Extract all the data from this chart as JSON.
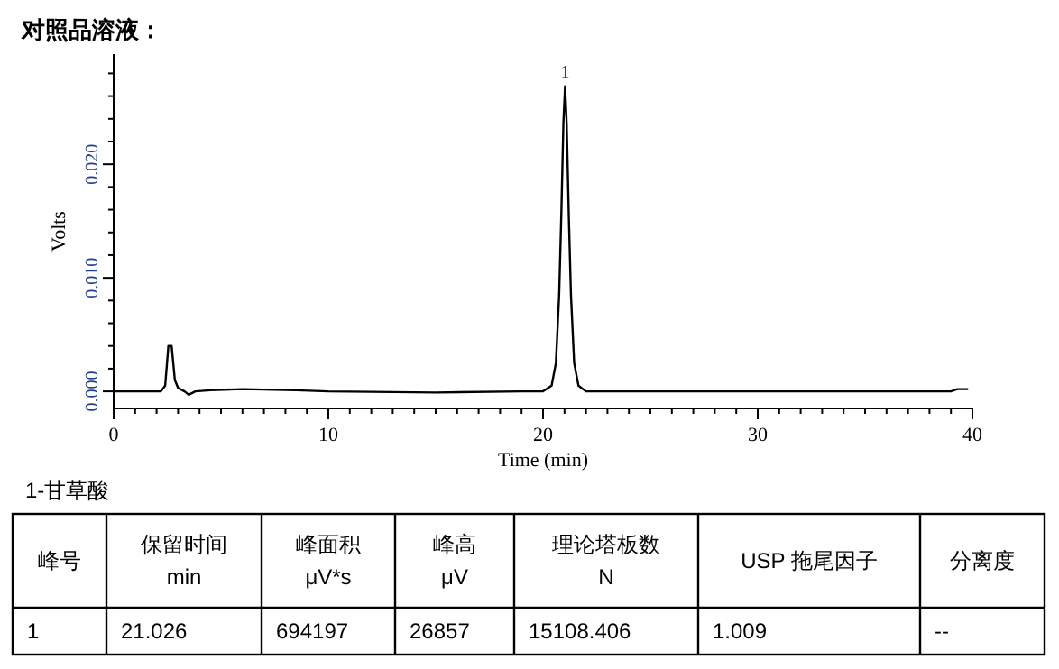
{
  "chart_data": [
    {
      "type": "line",
      "title": "对照品溶液：",
      "xlabel": "Time (min)",
      "ylabel": "Volts",
      "series": [
        {
          "color": "#000000",
          "x": [
            0,
            2.2,
            2.4,
            2.55,
            2.7,
            2.85,
            3.0,
            3.3,
            3.5,
            3.8,
            4.5,
            6,
            8.5,
            10,
            15,
            19,
            20,
            20.4,
            20.6,
            20.75,
            20.85,
            20.95,
            21.026,
            21.1,
            21.2,
            21.3,
            21.45,
            21.65,
            22,
            30,
            39,
            39.3,
            39.8
          ],
          "values": [
            0,
            0,
            0.0005,
            0.004,
            0.004,
            0.001,
            0.0003,
            0,
            -0.0003,
            0,
            0.0001,
            0.0002,
            0.0001,
            0,
            -0.0001,
            0,
            0,
            0.0005,
            0.0025,
            0.0085,
            0.0155,
            0.0237,
            0.026857,
            0.0237,
            0.0155,
            0.0085,
            0.0025,
            0.0005,
            0,
            0,
            0,
            0.0002,
            0.0002
          ]
        }
      ],
      "xlim": [
        0,
        40
      ],
      "ylim": [
        -0.0015,
        0.0297
      ],
      "xticks": [
        0,
        {
          "value": 1,
          "label": null
        },
        {
          "value": 2,
          "label": null
        },
        {
          "value": 3,
          "label": null
        },
        {
          "value": 4,
          "label": null
        },
        {
          "value": 5,
          "label": null
        },
        {
          "value": 6,
          "label": null
        },
        {
          "value": 7,
          "label": null
        },
        {
          "value": 8,
          "label": null
        },
        {
          "value": 9,
          "label": null
        },
        10,
        {
          "value": 11,
          "label": null
        },
        {
          "value": 12,
          "label": null
        },
        {
          "value": 13,
          "label": null
        },
        {
          "value": 14,
          "label": null
        },
        {
          "value": 15,
          "label": null
        },
        {
          "value": 16,
          "label": null
        },
        {
          "value": 17,
          "label": null
        },
        {
          "value": 18,
          "label": null
        },
        {
          "value": 19,
          "label": null
        },
        20,
        {
          "value": 21,
          "label": null
        },
        {
          "value": 22,
          "label": null
        },
        {
          "value": 23,
          "label": null
        },
        {
          "value": 24,
          "label": null
        },
        {
          "value": 25,
          "label": null
        },
        {
          "value": 26,
          "label": null
        },
        {
          "value": 27,
          "label": null
        },
        {
          "value": 28,
          "label": null
        },
        {
          "value": 29,
          "label": null
        },
        30,
        {
          "value": 31,
          "label": null
        },
        {
          "value": 32,
          "label": null
        },
        {
          "value": 33,
          "label": null
        },
        {
          "value": 34,
          "label": null
        },
        {
          "value": 35,
          "label": null
        },
        {
          "value": 36,
          "label": null
        },
        {
          "value": 37,
          "label": null
        },
        {
          "value": 38,
          "label": null
        },
        {
          "value": 39,
          "label": null
        },
        40
      ],
      "yticks": [
        {
          "value": 0,
          "label": "0.000"
        },
        {
          "value": 0.002,
          "label": null
        },
        {
          "value": 0.004,
          "label": null
        },
        {
          "value": 0.006,
          "label": null
        },
        {
          "value": 0.008,
          "label": null
        },
        {
          "value": 0.01,
          "label": "0.010"
        },
        {
          "value": 0.012,
          "label": null
        },
        {
          "value": 0.014,
          "label": null
        },
        {
          "value": 0.016,
          "label": null
        },
        {
          "value": 0.018,
          "label": null
        },
        {
          "value": 0.02,
          "label": "0.020"
        },
        {
          "value": 0.022,
          "label": null
        },
        {
          "value": 0.024,
          "label": null
        },
        {
          "value": 0.026,
          "label": null
        },
        {
          "value": 0.028,
          "label": null
        }
      ],
      "annotations": [
        {
          "text": "1",
          "x": 21.026,
          "y": 0.026857
        }
      ]
    },
    {
      "type": "other",
      "title": "1-甘草酸",
      "annotations": [
        "峰号",
        "保留时间\nmin",
        "峰面积\nμV*s",
        "峰高\nμV",
        "理论塔板数\nN",
        "USP 拖尾因子",
        "分离度",
        "1",
        "21.026",
        "694197",
        "26857",
        "15108.406",
        "1.009",
        "--"
      ]
    }
  ]
}
